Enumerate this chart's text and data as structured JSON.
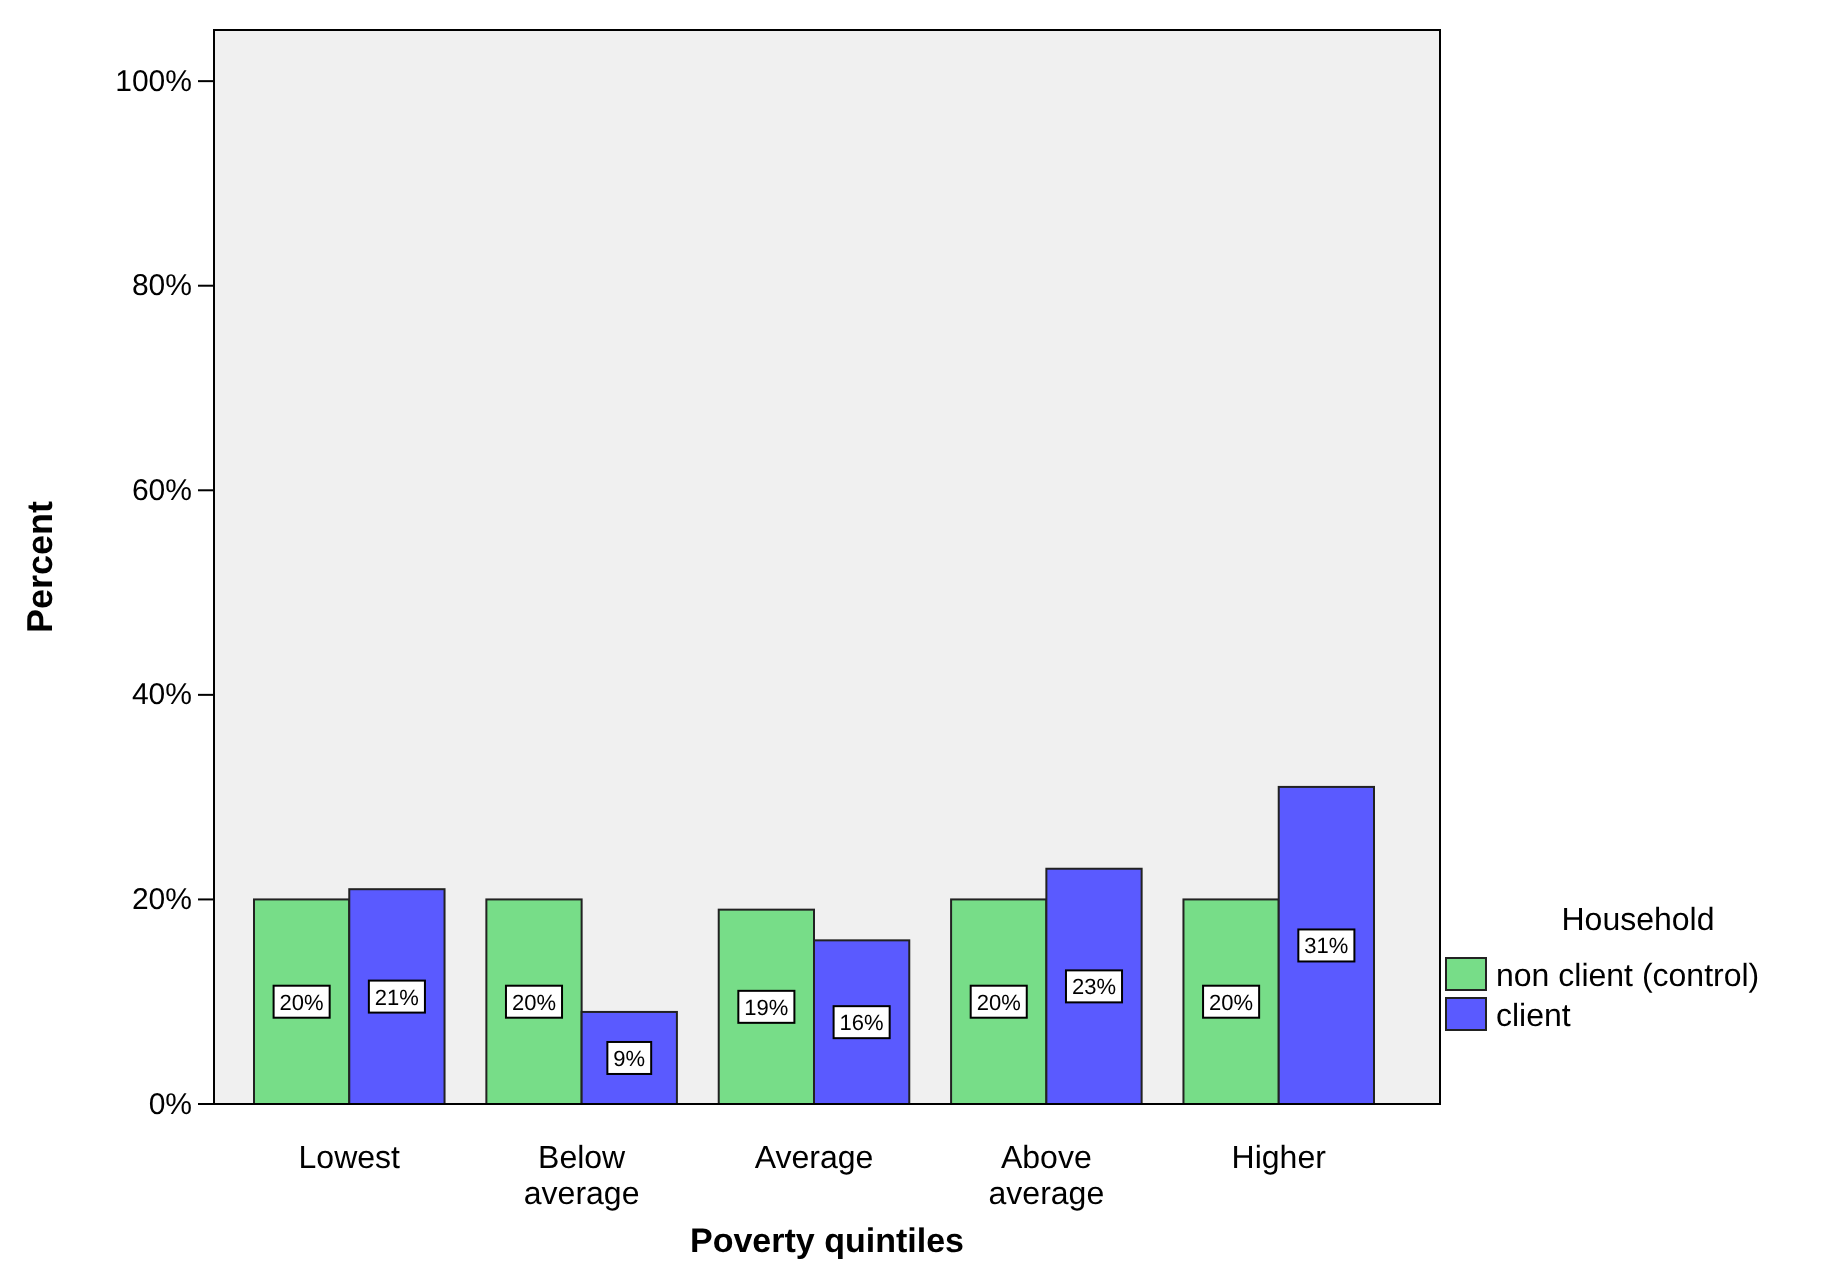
{
  "chart_data": {
    "type": "bar",
    "xlabel": "Poverty quintiles",
    "ylabel": "Percent",
    "legend_title": "Household",
    "categories": [
      "Lowest",
      "Below average",
      "Average",
      "Above average",
      "Higher"
    ],
    "series": [
      {
        "name": "non client (control)",
        "color": "#77dd88",
        "values": [
          20,
          20,
          19,
          20,
          20
        ],
        "value_labels": [
          "20%",
          "20%",
          "19%",
          "20%",
          "20%"
        ]
      },
      {
        "name": "client",
        "color": "#5a5aff",
        "values": [
          21,
          9,
          16,
          23,
          31
        ],
        "value_labels": [
          "21%",
          "9%",
          "16%",
          "23%",
          "31%"
        ]
      }
    ],
    "ylim": [
      0,
      105
    ],
    "yticks": [
      {
        "value": 0,
        "label": "0%"
      },
      {
        "value": 20,
        "label": "20%"
      },
      {
        "value": 40,
        "label": "40%"
      },
      {
        "value": 60,
        "label": "60%"
      },
      {
        "value": 80,
        "label": "80%"
      },
      {
        "value": 100,
        "label": "100%"
      }
    ],
    "grid": false,
    "legend": "right"
  }
}
